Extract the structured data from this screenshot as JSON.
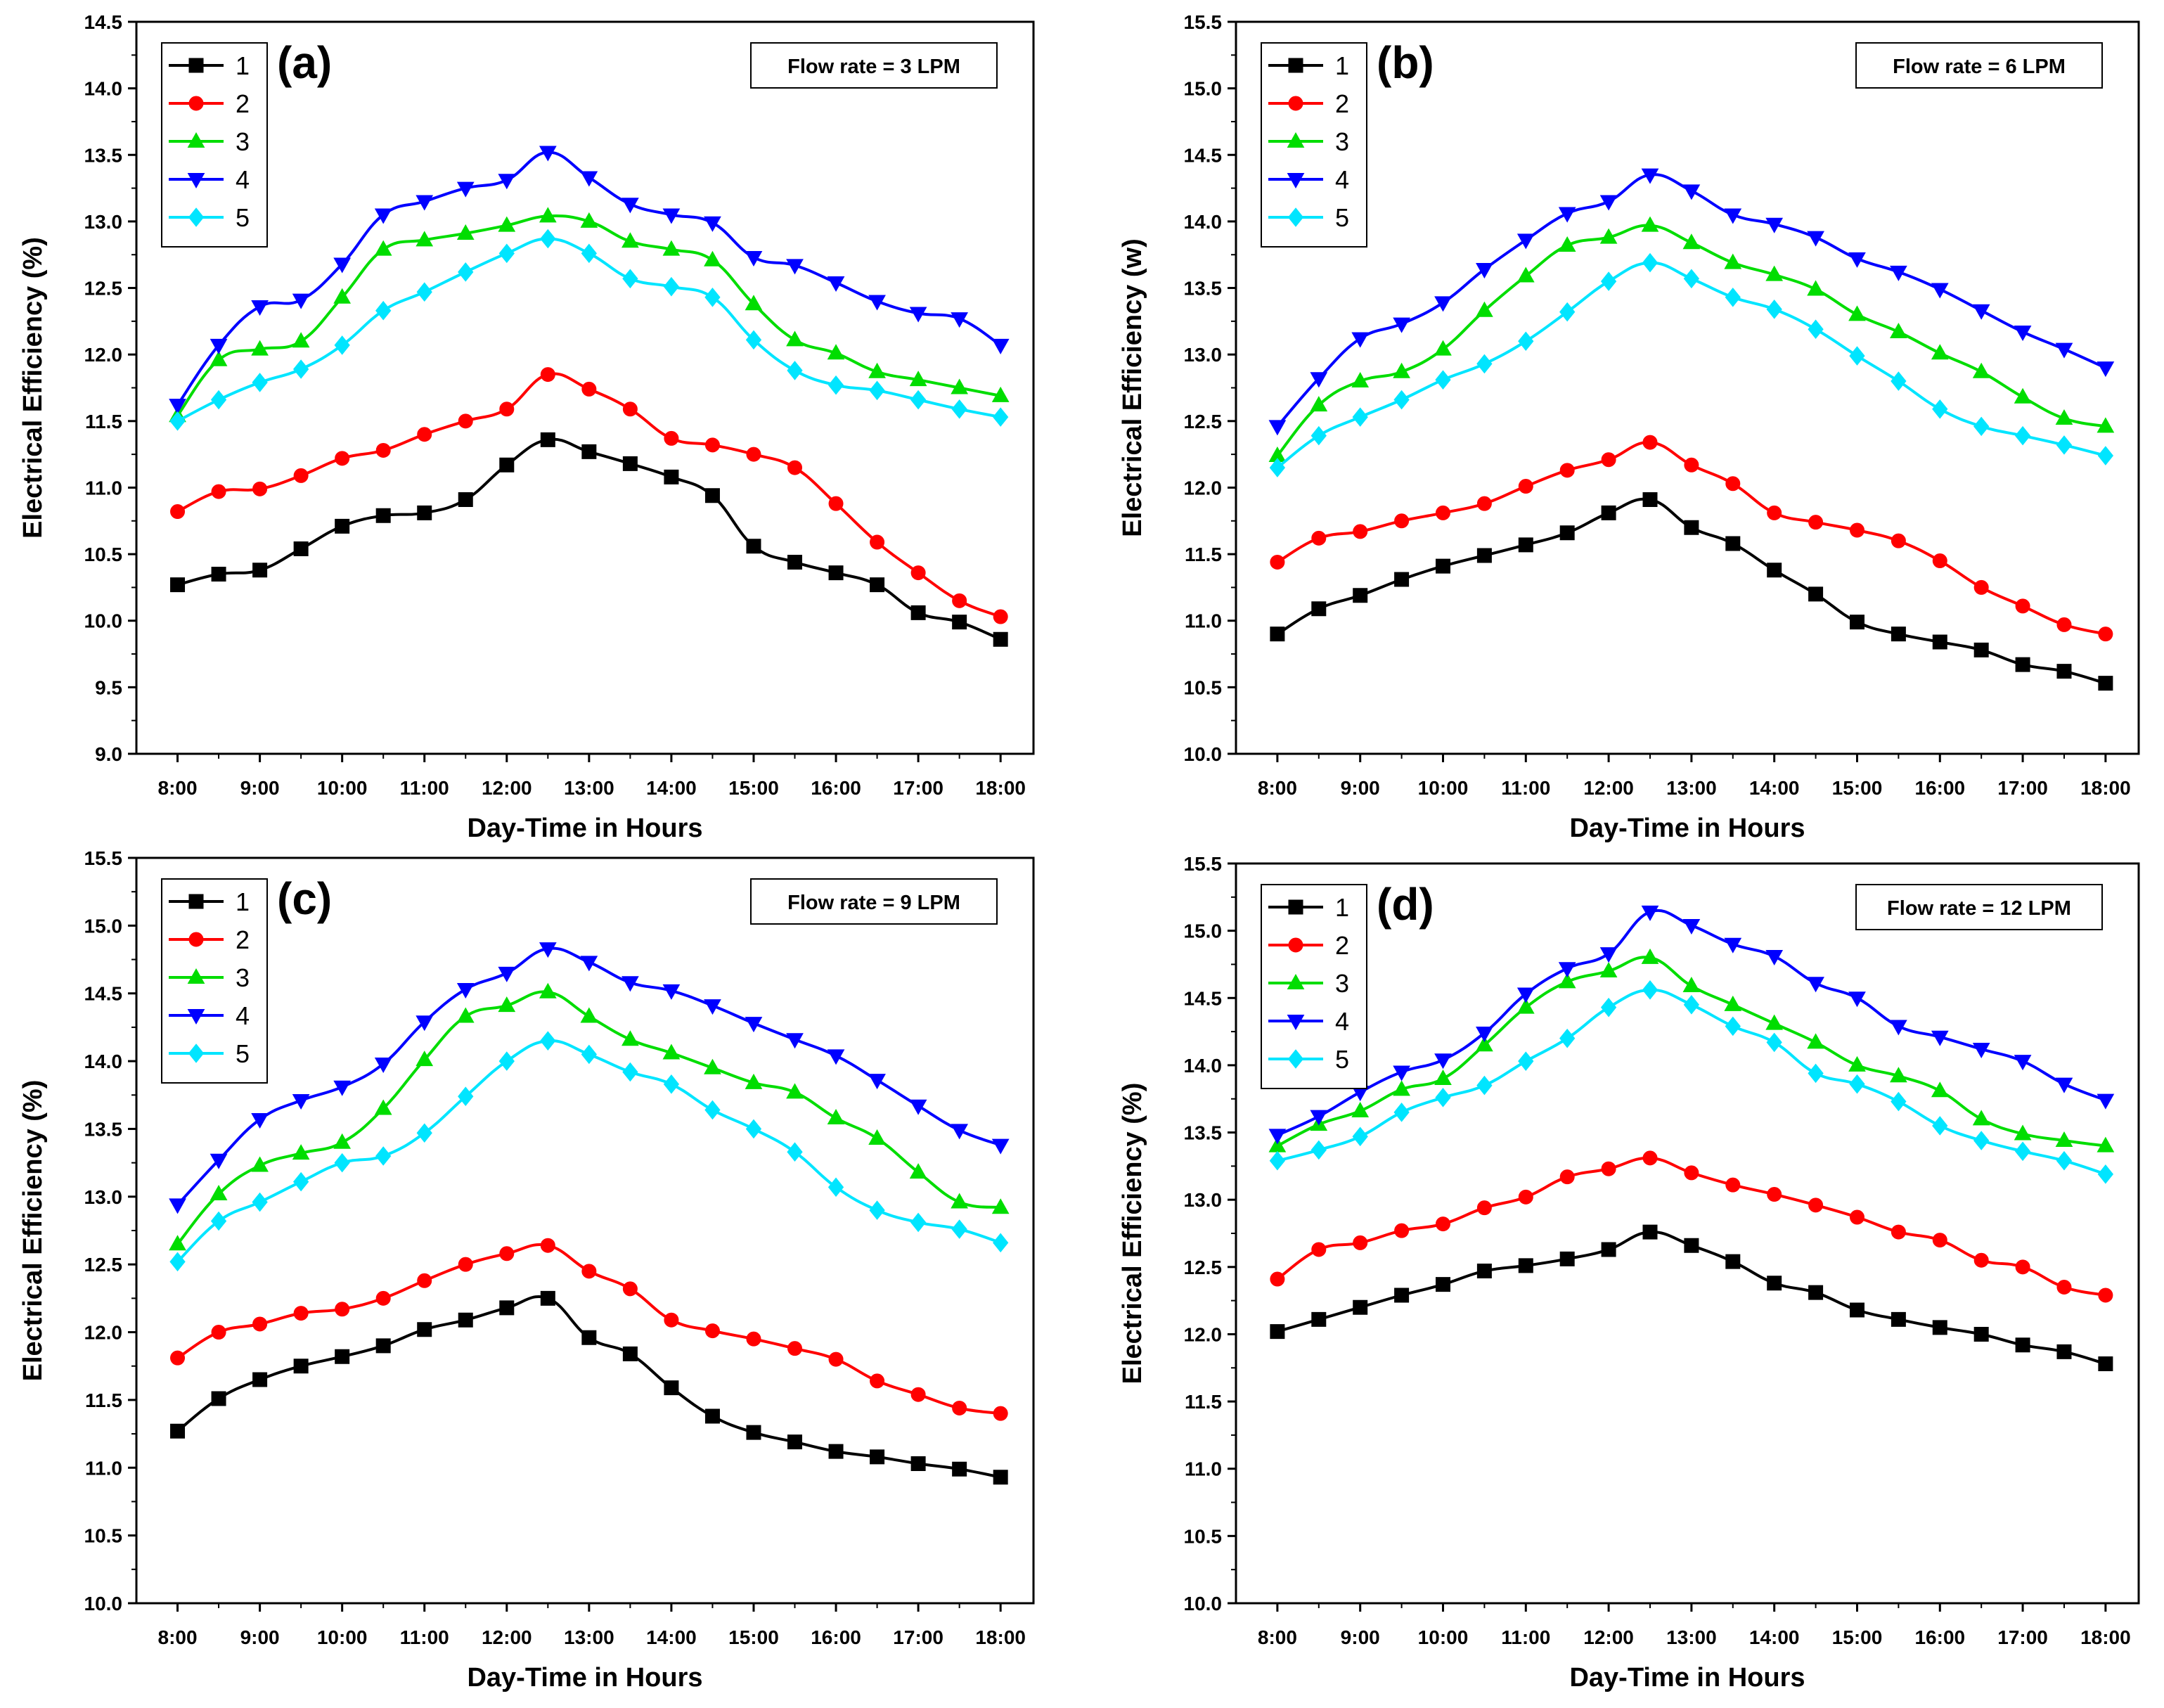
{
  "chart_data": [
    {
      "type": "line",
      "panel": "(a)",
      "annotation": "Flow rate = 3 LPM",
      "xlabel": "Day-Time in Hours",
      "ylabel": "Electrical Efficiency (%)",
      "ylim": [
        9.0,
        14.5
      ],
      "ytick_step": 0.5,
      "xlim": [
        7.5,
        18.4
      ],
      "x": [
        8,
        8.5,
        9,
        9.5,
        10,
        10.5,
        11,
        11.5,
        12,
        12.5,
        13,
        13.5,
        14,
        14.5,
        15,
        15.5,
        16,
        16.5,
        17,
        17.5,
        18
      ],
      "xticks": [
        8,
        9,
        10,
        11,
        12,
        13,
        14,
        15,
        16,
        17,
        18
      ],
      "xtick_labels": [
        "8:00",
        "9:00",
        "10:00",
        "11:00",
        "12:00",
        "13:00",
        "14:00",
        "15:00",
        "16:00",
        "17:00",
        "18:00"
      ],
      "series": [
        {
          "name": "1",
          "color": "#000000",
          "marker": "square",
          "values": [
            10.27,
            10.35,
            10.38,
            10.54,
            10.71,
            10.79,
            10.81,
            10.91,
            11.17,
            11.36,
            11.27,
            11.18,
            11.08,
            10.94,
            10.56,
            10.44,
            10.36,
            10.27,
            10.06,
            9.99,
            9.86
          ]
        },
        {
          "name": "2",
          "color": "#ff0000",
          "marker": "circle",
          "values": [
            10.82,
            10.97,
            10.99,
            11.09,
            11.22,
            11.28,
            11.4,
            11.5,
            11.59,
            11.85,
            11.74,
            11.59,
            11.37,
            11.32,
            11.25,
            11.15,
            10.88,
            10.59,
            10.36,
            10.15,
            10.03
          ]
        },
        {
          "name": "3",
          "color": "#00dd00",
          "marker": "triangle-up",
          "values": [
            11.54,
            11.96,
            12.04,
            12.1,
            12.43,
            12.79,
            12.86,
            12.91,
            12.97,
            13.04,
            13.0,
            12.85,
            12.79,
            12.71,
            12.38,
            12.11,
            12.01,
            11.87,
            11.81,
            11.75,
            11.69
          ]
        },
        {
          "name": "4",
          "color": "#0000ff",
          "marker": "triangle-down",
          "values": [
            11.62,
            12.07,
            12.36,
            12.41,
            12.68,
            13.05,
            13.15,
            13.25,
            13.31,
            13.52,
            13.33,
            13.13,
            13.05,
            12.99,
            12.73,
            12.67,
            12.54,
            12.4,
            12.31,
            12.27,
            12.07
          ]
        },
        {
          "name": "5",
          "color": "#00e5ff",
          "marker": "diamond",
          "values": [
            11.5,
            11.66,
            11.79,
            11.89,
            12.07,
            12.33,
            12.47,
            12.62,
            12.76,
            12.87,
            12.76,
            12.57,
            12.51,
            12.43,
            12.11,
            11.88,
            11.77,
            11.73,
            11.66,
            11.59,
            11.53
          ]
        }
      ]
    },
    {
      "type": "line",
      "panel": "(b)",
      "annotation": "Flow rate = 6 LPM",
      "xlabel": "Day-Time in Hours",
      "ylabel": "Electrical Efficiency (w)",
      "ylim": [
        10.0,
        15.5
      ],
      "ytick_step": 0.5,
      "xlim": [
        7.5,
        18.4
      ],
      "x": [
        8,
        8.5,
        9,
        9.5,
        10,
        10.5,
        11,
        11.5,
        12,
        12.5,
        13,
        13.5,
        14,
        14.5,
        15,
        15.5,
        16,
        16.5,
        17,
        17.5,
        18
      ],
      "xticks": [
        8,
        9,
        10,
        11,
        12,
        13,
        14,
        15,
        16,
        17,
        18
      ],
      "xtick_labels": [
        "8:00",
        "9:00",
        "10:00",
        "11:00",
        "12:00",
        "13:00",
        "14:00",
        "15:00",
        "16:00",
        "17:00",
        "18:00"
      ],
      "series": [
        {
          "name": "1",
          "color": "#000000",
          "marker": "square",
          "values": [
            10.9,
            11.09,
            11.19,
            11.31,
            11.41,
            11.49,
            11.57,
            11.66,
            11.81,
            11.91,
            11.7,
            11.58,
            11.38,
            11.2,
            10.99,
            10.9,
            10.84,
            10.78,
            10.67,
            10.62,
            10.53
          ]
        },
        {
          "name": "2",
          "color": "#ff0000",
          "marker": "circle",
          "values": [
            11.44,
            11.62,
            11.67,
            11.75,
            11.81,
            11.88,
            12.01,
            12.13,
            12.21,
            12.34,
            12.17,
            12.03,
            11.81,
            11.74,
            11.68,
            11.6,
            11.45,
            11.25,
            11.11,
            10.97,
            10.9
          ]
        },
        {
          "name": "3",
          "color": "#00dd00",
          "marker": "triangle-up",
          "values": [
            12.24,
            12.62,
            12.8,
            12.87,
            13.04,
            13.33,
            13.59,
            13.82,
            13.88,
            13.97,
            13.84,
            13.69,
            13.6,
            13.49,
            13.3,
            13.17,
            13.01,
            12.87,
            12.68,
            12.52,
            12.46
          ]
        },
        {
          "name": "4",
          "color": "#0000ff",
          "marker": "triangle-down",
          "values": [
            12.46,
            12.82,
            13.12,
            13.23,
            13.39,
            13.64,
            13.86,
            14.06,
            14.15,
            14.35,
            14.23,
            14.05,
            13.98,
            13.88,
            13.72,
            13.62,
            13.49,
            13.33,
            13.17,
            13.04,
            12.9
          ]
        },
        {
          "name": "5",
          "color": "#00e5ff",
          "marker": "diamond",
          "values": [
            12.15,
            12.39,
            12.53,
            12.66,
            12.81,
            12.93,
            13.1,
            13.32,
            13.55,
            13.69,
            13.57,
            13.43,
            13.34,
            13.19,
            12.99,
            12.8,
            12.59,
            12.46,
            12.39,
            12.32,
            12.24
          ]
        }
      ]
    },
    {
      "type": "line",
      "panel": "(c)",
      "annotation": "Flow rate = 9 LPM",
      "xlabel": "Day-Time in Hours",
      "ylabel": "Electrical Efficiency (%)",
      "ylim": [
        10.0,
        15.5
      ],
      "ytick_step": 0.5,
      "xlim": [
        7.5,
        18.4
      ],
      "x": [
        8,
        8.5,
        9,
        9.5,
        10,
        10.5,
        11,
        11.5,
        12,
        12.5,
        13,
        13.5,
        14,
        14.5,
        15,
        15.5,
        16,
        16.5,
        17,
        17.5,
        18
      ],
      "xticks": [
        8,
        9,
        10,
        11,
        12,
        13,
        14,
        15,
        16,
        17,
        18
      ],
      "xtick_labels": [
        "8:00",
        "9:00",
        "10:00",
        "11:00",
        "12:00",
        "13:00",
        "14:00",
        "15:00",
        "16:00",
        "17:00",
        "18:00"
      ],
      "series": [
        {
          "name": "1",
          "color": "#000000",
          "marker": "square",
          "values": [
            11.27,
            11.51,
            11.65,
            11.75,
            11.82,
            11.9,
            12.02,
            12.09,
            12.18,
            12.25,
            11.96,
            11.84,
            11.59,
            11.38,
            11.26,
            11.19,
            11.12,
            11.08,
            11.03,
            10.99,
            10.93
          ]
        },
        {
          "name": "2",
          "color": "#ff0000",
          "marker": "circle",
          "values": [
            11.81,
            12.0,
            12.06,
            12.14,
            12.17,
            12.25,
            12.38,
            12.5,
            12.58,
            12.64,
            12.45,
            12.32,
            12.09,
            12.01,
            11.95,
            11.88,
            11.8,
            11.64,
            11.54,
            11.44,
            11.4
          ]
        },
        {
          "name": "3",
          "color": "#00dd00",
          "marker": "triangle-up",
          "values": [
            12.65,
            13.02,
            13.23,
            13.32,
            13.4,
            13.65,
            14.01,
            14.33,
            14.41,
            14.51,
            14.33,
            14.16,
            14.06,
            13.95,
            13.84,
            13.77,
            13.58,
            13.43,
            13.18,
            12.96,
            12.92
          ]
        },
        {
          "name": "4",
          "color": "#0000ff",
          "marker": "triangle-down",
          "values": [
            12.94,
            13.27,
            13.57,
            13.71,
            13.81,
            13.98,
            14.29,
            14.53,
            14.65,
            14.83,
            14.73,
            14.58,
            14.52,
            14.41,
            14.28,
            14.16,
            14.04,
            13.86,
            13.67,
            13.49,
            13.38
          ]
        },
        {
          "name": "5",
          "color": "#00e5ff",
          "marker": "diamond",
          "values": [
            12.52,
            12.82,
            12.96,
            13.11,
            13.25,
            13.3,
            13.47,
            13.74,
            14.0,
            14.15,
            14.05,
            13.92,
            13.83,
            13.64,
            13.5,
            13.33,
            13.07,
            12.9,
            12.81,
            12.76,
            12.66
          ]
        }
      ]
    },
    {
      "type": "line",
      "panel": "(d)",
      "annotation": "Flow rate = 12 LPM",
      "xlabel": "Day-Time in Hours",
      "ylabel": "Electrical Efficiency (%)",
      "ylim": [
        10.0,
        15.5
      ],
      "ytick_step": 0.5,
      "xlim": [
        7.5,
        18.4
      ],
      "x": [
        8,
        8.5,
        9,
        9.5,
        10,
        10.5,
        11,
        11.5,
        12,
        12.5,
        13,
        13.5,
        14,
        14.5,
        15,
        15.5,
        16,
        16.5,
        17,
        17.5,
        18
      ],
      "xticks": [
        8,
        9,
        10,
        11,
        12,
        13,
        14,
        15,
        16,
        17,
        18
      ],
      "xtick_labels": [
        "8:00",
        "9:00",
        "10:00",
        "11:00",
        "12:00",
        "13:00",
        "14:00",
        "15:00",
        "16:00",
        "17:00",
        "18:00"
      ],
      "series": [
        {
          "name": "1",
          "color": "#000000",
          "marker": "square",
          "values": [
            12.02,
            12.11,
            12.2,
            12.29,
            12.37,
            12.47,
            12.51,
            12.56,
            12.63,
            12.76,
            12.66,
            12.54,
            12.38,
            12.31,
            12.18,
            12.11,
            12.05,
            12.0,
            11.92,
            11.87,
            11.78
          ]
        },
        {
          "name": "2",
          "color": "#ff0000",
          "marker": "circle",
          "values": [
            12.41,
            12.63,
            12.68,
            12.77,
            12.82,
            12.94,
            13.02,
            13.17,
            13.23,
            13.31,
            13.2,
            13.11,
            13.04,
            12.96,
            12.87,
            12.76,
            12.7,
            12.55,
            12.5,
            12.35,
            12.29
          ]
        },
        {
          "name": "3",
          "color": "#00dd00",
          "marker": "triangle-up",
          "values": [
            13.4,
            13.56,
            13.66,
            13.82,
            13.9,
            14.15,
            14.43,
            14.62,
            14.7,
            14.8,
            14.59,
            14.45,
            14.31,
            14.17,
            14.0,
            13.92,
            13.81,
            13.6,
            13.49,
            13.44,
            13.4
          ]
        },
        {
          "name": "4",
          "color": "#0000ff",
          "marker": "triangle-down",
          "values": [
            13.48,
            13.62,
            13.8,
            13.95,
            14.04,
            14.24,
            14.53,
            14.72,
            14.83,
            15.14,
            15.04,
            14.9,
            14.81,
            14.61,
            14.5,
            14.29,
            14.21,
            14.12,
            14.03,
            13.86,
            13.74
          ]
        },
        {
          "name": "5",
          "color": "#00e5ff",
          "marker": "diamond",
          "values": [
            13.29,
            13.37,
            13.47,
            13.65,
            13.76,
            13.85,
            14.03,
            14.2,
            14.43,
            14.56,
            14.45,
            14.29,
            14.17,
            13.94,
            13.86,
            13.73,
            13.55,
            13.44,
            13.36,
            13.29,
            13.19
          ]
        }
      ]
    }
  ]
}
